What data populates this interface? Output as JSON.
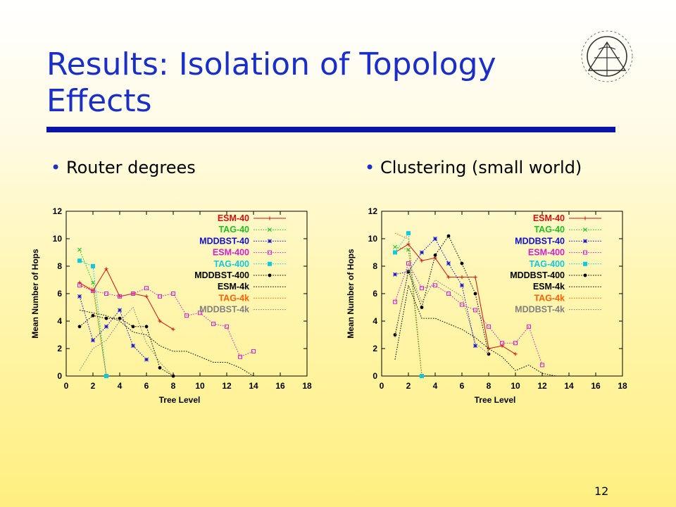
{
  "slide": {
    "title_line1": "Results: Isolation of Topology",
    "title_line2": "Effects",
    "page_number": "12",
    "accent_color": "#1a2ec8",
    "bullets": [
      "Router degrees",
      "Clustering (small world)"
    ],
    "logo": "purdue-university-seal"
  },
  "chart_data": [
    {
      "type": "line",
      "xlabel": "Tree Level",
      "ylabel": "Mean Number of Hops",
      "xlim": [
        0,
        18
      ],
      "ylim": [
        0,
        12
      ],
      "xticks": [
        "0",
        "2",
        "4",
        "6",
        "8",
        "10",
        "12",
        "14",
        "16",
        "18"
      ],
      "yticks": [
        "0",
        "2",
        "4",
        "6",
        "8",
        "10",
        "12"
      ],
      "legend_position": "top-right",
      "series": [
        {
          "name": "ESM-40",
          "color": "#d01010",
          "dash": "solid",
          "marker": "plus",
          "x": [
            1,
            2,
            3,
            4,
            5,
            6,
            7,
            8
          ],
          "y": [
            6.8,
            6.2,
            7.8,
            5.8,
            6.0,
            5.8,
            4.0,
            3.4
          ]
        },
        {
          "name": "TAG-40",
          "color": "#20c020",
          "dash": "dot",
          "marker": "x",
          "x": [
            1,
            2,
            3
          ],
          "y": [
            9.2,
            6.8,
            0.0
          ]
        },
        {
          "name": "MDDBST-40",
          "color": "#1010d0",
          "dash": "dot",
          "marker": "star",
          "x": [
            1,
            2,
            3,
            4,
            5,
            6
          ],
          "y": [
            5.8,
            2.6,
            3.6,
            4.8,
            2.2,
            1.2
          ]
        },
        {
          "name": "ESM-400",
          "color": "#d020d0",
          "dash": "dot",
          "marker": "square",
          "x": [
            1,
            2,
            3,
            4,
            5,
            6,
            7,
            8,
            9,
            10,
            11,
            12,
            13,
            14
          ],
          "y": [
            6.6,
            6.2,
            6.0,
            5.8,
            6.0,
            6.4,
            5.8,
            6.0,
            4.4,
            4.6,
            3.8,
            3.6,
            1.4,
            1.8
          ]
        },
        {
          "name": "TAG-400",
          "color": "#10c8e0",
          "dash": "dot",
          "marker": "filled-square",
          "x": [
            1,
            2,
            3
          ],
          "y": [
            8.4,
            8.0,
            0.0
          ]
        },
        {
          "name": "MDDBST-400",
          "color": "#000000",
          "dash": "dot",
          "marker": "circle",
          "x": [
            1,
            2,
            3,
            4,
            5,
            6,
            7,
            8
          ],
          "y": [
            3.6,
            4.4,
            4.2,
            4.2,
            3.6,
            3.6,
            0.6,
            0.0
          ]
        },
        {
          "name": "ESM-4k",
          "color": "#000000",
          "dash": "dot",
          "marker": "none",
          "x": [
            1,
            2,
            3,
            4,
            5,
            6,
            7,
            8,
            9,
            10,
            11,
            12,
            13,
            14
          ],
          "y": [
            4.8,
            4.6,
            4.4,
            4.0,
            3.2,
            3.0,
            2.2,
            1.8,
            1.8,
            1.4,
            1.0,
            1.0,
            0.6,
            0.0
          ]
        },
        {
          "name": "TAG-4k",
          "color": "#ff6000",
          "dash": "dot",
          "marker": "none",
          "x": [
            1,
            2,
            3
          ],
          "y": [
            6.6,
            6.4,
            0.0
          ]
        },
        {
          "name": "MDDBST-4k",
          "color": "#808080",
          "dash": "dot",
          "marker": "none",
          "x": [
            1,
            2,
            3,
            4,
            5,
            6,
            7,
            8
          ],
          "y": [
            0.4,
            2.0,
            2.6,
            4.0,
            5.0,
            2.4,
            1.0,
            0.0
          ]
        }
      ]
    },
    {
      "type": "line",
      "xlabel": "Tree Level",
      "ylabel": "Mean Number of Hops",
      "xlim": [
        0,
        18
      ],
      "ylim": [
        0,
        12
      ],
      "xticks": [
        "0",
        "2",
        "4",
        "6",
        "8",
        "10",
        "12",
        "14",
        "16",
        "18"
      ],
      "yticks": [
        "0",
        "2",
        "4",
        "6",
        "8",
        "10",
        "12"
      ],
      "legend_position": "top-right",
      "series": [
        {
          "name": "ESM-40",
          "color": "#d01010",
          "dash": "solid",
          "marker": "plus",
          "x": [
            1,
            2,
            3,
            4,
            5,
            6,
            7,
            8,
            9,
            10
          ],
          "y": [
            9.0,
            9.6,
            8.4,
            8.6,
            7.2,
            7.2,
            7.2,
            2.0,
            2.2,
            1.6
          ]
        },
        {
          "name": "TAG-40",
          "color": "#20c020",
          "dash": "dot",
          "marker": "x",
          "x": [
            1,
            2,
            3
          ],
          "y": [
            9.4,
            9.2,
            0.0
          ]
        },
        {
          "name": "MDDBST-40",
          "color": "#1010d0",
          "dash": "dot",
          "marker": "star",
          "x": [
            1,
            2,
            3,
            4,
            5,
            6,
            7
          ],
          "y": [
            7.4,
            7.6,
            9.0,
            10.0,
            8.2,
            6.6,
            2.2
          ]
        },
        {
          "name": "ESM-400",
          "color": "#d020d0",
          "dash": "dot",
          "marker": "square",
          "x": [
            1,
            2,
            3,
            4,
            5,
            6,
            7,
            8,
            9,
            10,
            11,
            12
          ],
          "y": [
            5.4,
            8.2,
            6.4,
            6.6,
            6.0,
            5.2,
            4.8,
            3.6,
            2.4,
            2.4,
            3.6,
            0.8
          ]
        },
        {
          "name": "TAG-400",
          "color": "#10c8e0",
          "dash": "dot",
          "marker": "filled-square",
          "x": [
            1,
            2,
            3
          ],
          "y": [
            9.0,
            10.4,
            0.0
          ]
        },
        {
          "name": "MDDBST-400",
          "color": "#000000",
          "dash": "dot",
          "marker": "circle",
          "x": [
            1,
            2,
            3,
            4,
            5,
            6,
            7,
            8
          ],
          "y": [
            3.0,
            7.6,
            5.0,
            8.8,
            10.2,
            8.2,
            6.0,
            1.6
          ]
        },
        {
          "name": "ESM-4k",
          "color": "#000000",
          "dash": "dot",
          "marker": "none",
          "x": [
            1,
            2,
            3,
            4,
            5,
            6,
            7,
            8,
            9,
            10,
            11,
            12,
            13
          ],
          "y": [
            1.2,
            6.6,
            4.2,
            4.2,
            3.8,
            3.4,
            2.8,
            2.0,
            1.4,
            0.4,
            0.8,
            0.2,
            0.0
          ]
        },
        {
          "name": "TAG-4k",
          "color": "#ff6000",
          "dash": "dot",
          "marker": "none",
          "x": [
            1,
            2,
            3
          ],
          "y": [
            10.4,
            10.0,
            0.0
          ]
        },
        {
          "name": "MDDBST-4k",
          "color": "#808080",
          "dash": "dot",
          "marker": "none",
          "x": [
            1,
            2,
            3,
            4,
            5,
            6,
            7,
            8
          ],
          "y": [
            2.8,
            7.8,
            5.4,
            7.0,
            6.4,
            5.8,
            2.4,
            1.6
          ]
        }
      ]
    }
  ]
}
